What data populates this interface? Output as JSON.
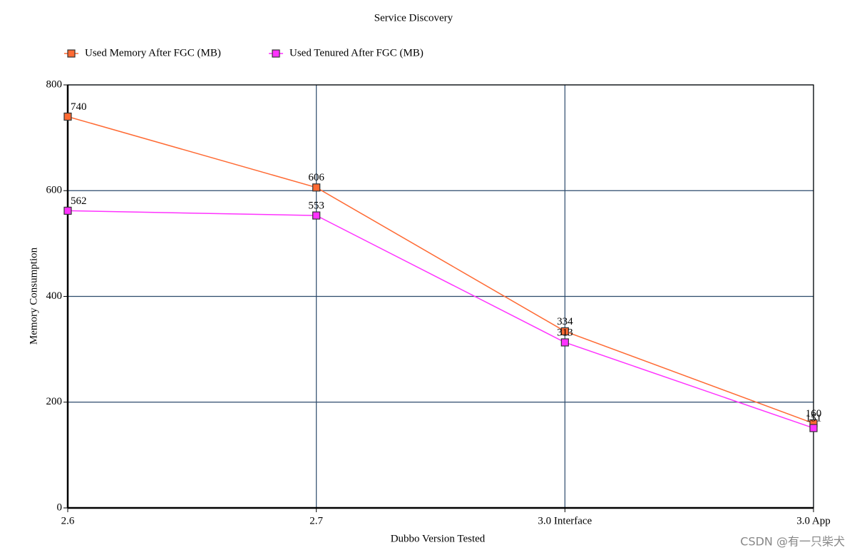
{
  "chart_data": {
    "type": "line",
    "title": "Service Discovery",
    "x_label": "Dubbo Version Tested",
    "y_label": "Memory Consumption",
    "categories": [
      "2.6",
      "2.7",
      "3.0 Interface",
      "3.0 App"
    ],
    "series": [
      {
        "name": "Used Memory After FGC (MB)",
        "color": "#ff6a33",
        "values": [
          740,
          606,
          334,
          160
        ]
      },
      {
        "name": "Used Tenured After FGC (MB)",
        "color": "#ff33ff",
        "values": [
          562,
          553,
          313,
          151
        ]
      }
    ],
    "ylim": [
      0,
      800
    ],
    "yticks": [
      0,
      200,
      400,
      600,
      800
    ],
    "grid": true,
    "watermark": "CSDN @有一只柴犬"
  }
}
